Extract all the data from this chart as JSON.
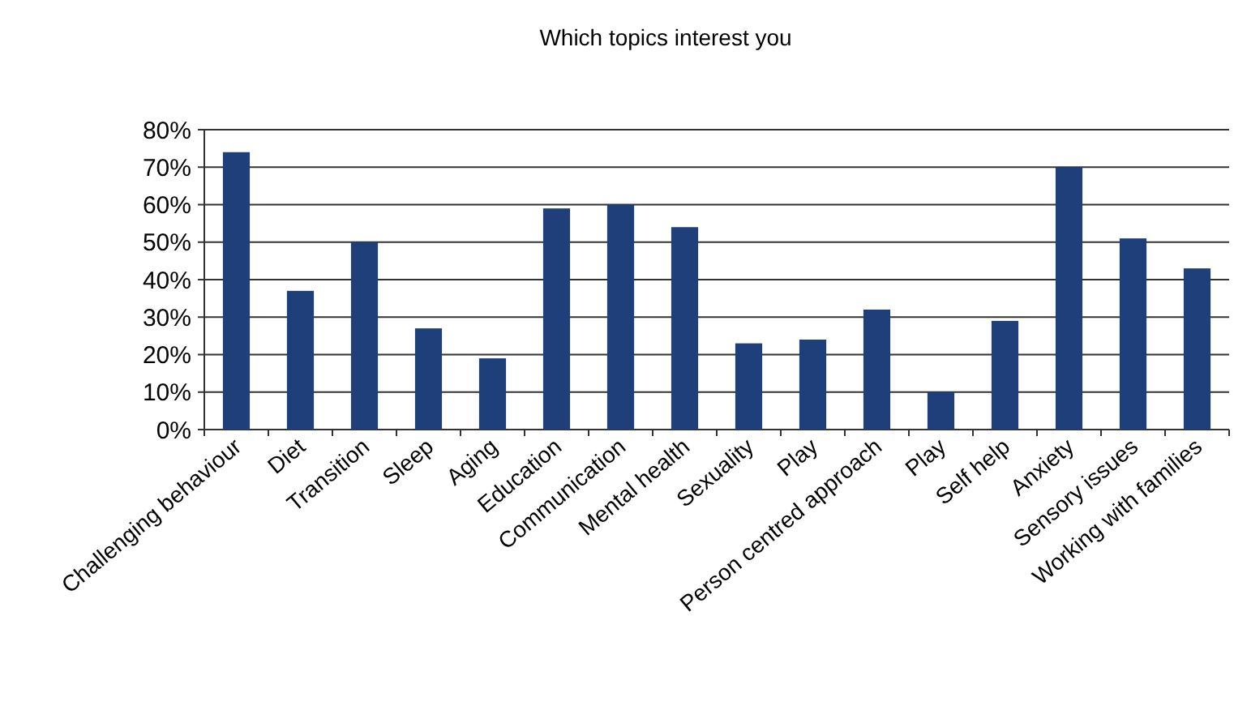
{
  "chart_data": {
    "type": "bar",
    "title": "Which topics interest you",
    "categories": [
      "Challenging behaviour",
      "Diet",
      "Transition",
      "Sleep",
      "Aging",
      "Education",
      "Communication",
      "Mental health",
      "Sexuality",
      "Play",
      "Person centred approach",
      "Play",
      "Self help",
      "Anxiety",
      "Sensory issues",
      "Working with families"
    ],
    "values": [
      74,
      37,
      50,
      27,
      19,
      59,
      60,
      54,
      23,
      24,
      32,
      10,
      29,
      70,
      51,
      43
    ],
    "color": "#1f3f7a",
    "ylim": [
      0,
      80
    ],
    "yticks": [
      {
        "value": 0,
        "label": "0%"
      },
      {
        "value": 10,
        "label": "10%"
      },
      {
        "value": 20,
        "label": "20%"
      },
      {
        "value": 30,
        "label": "30%"
      },
      {
        "value": 40,
        "label": "40%"
      },
      {
        "value": 50,
        "label": "50%"
      },
      {
        "value": 60,
        "label": "60%"
      },
      {
        "value": 70,
        "label": "70%"
      },
      {
        "value": 80,
        "label": "80%"
      }
    ],
    "grid": "y"
  }
}
